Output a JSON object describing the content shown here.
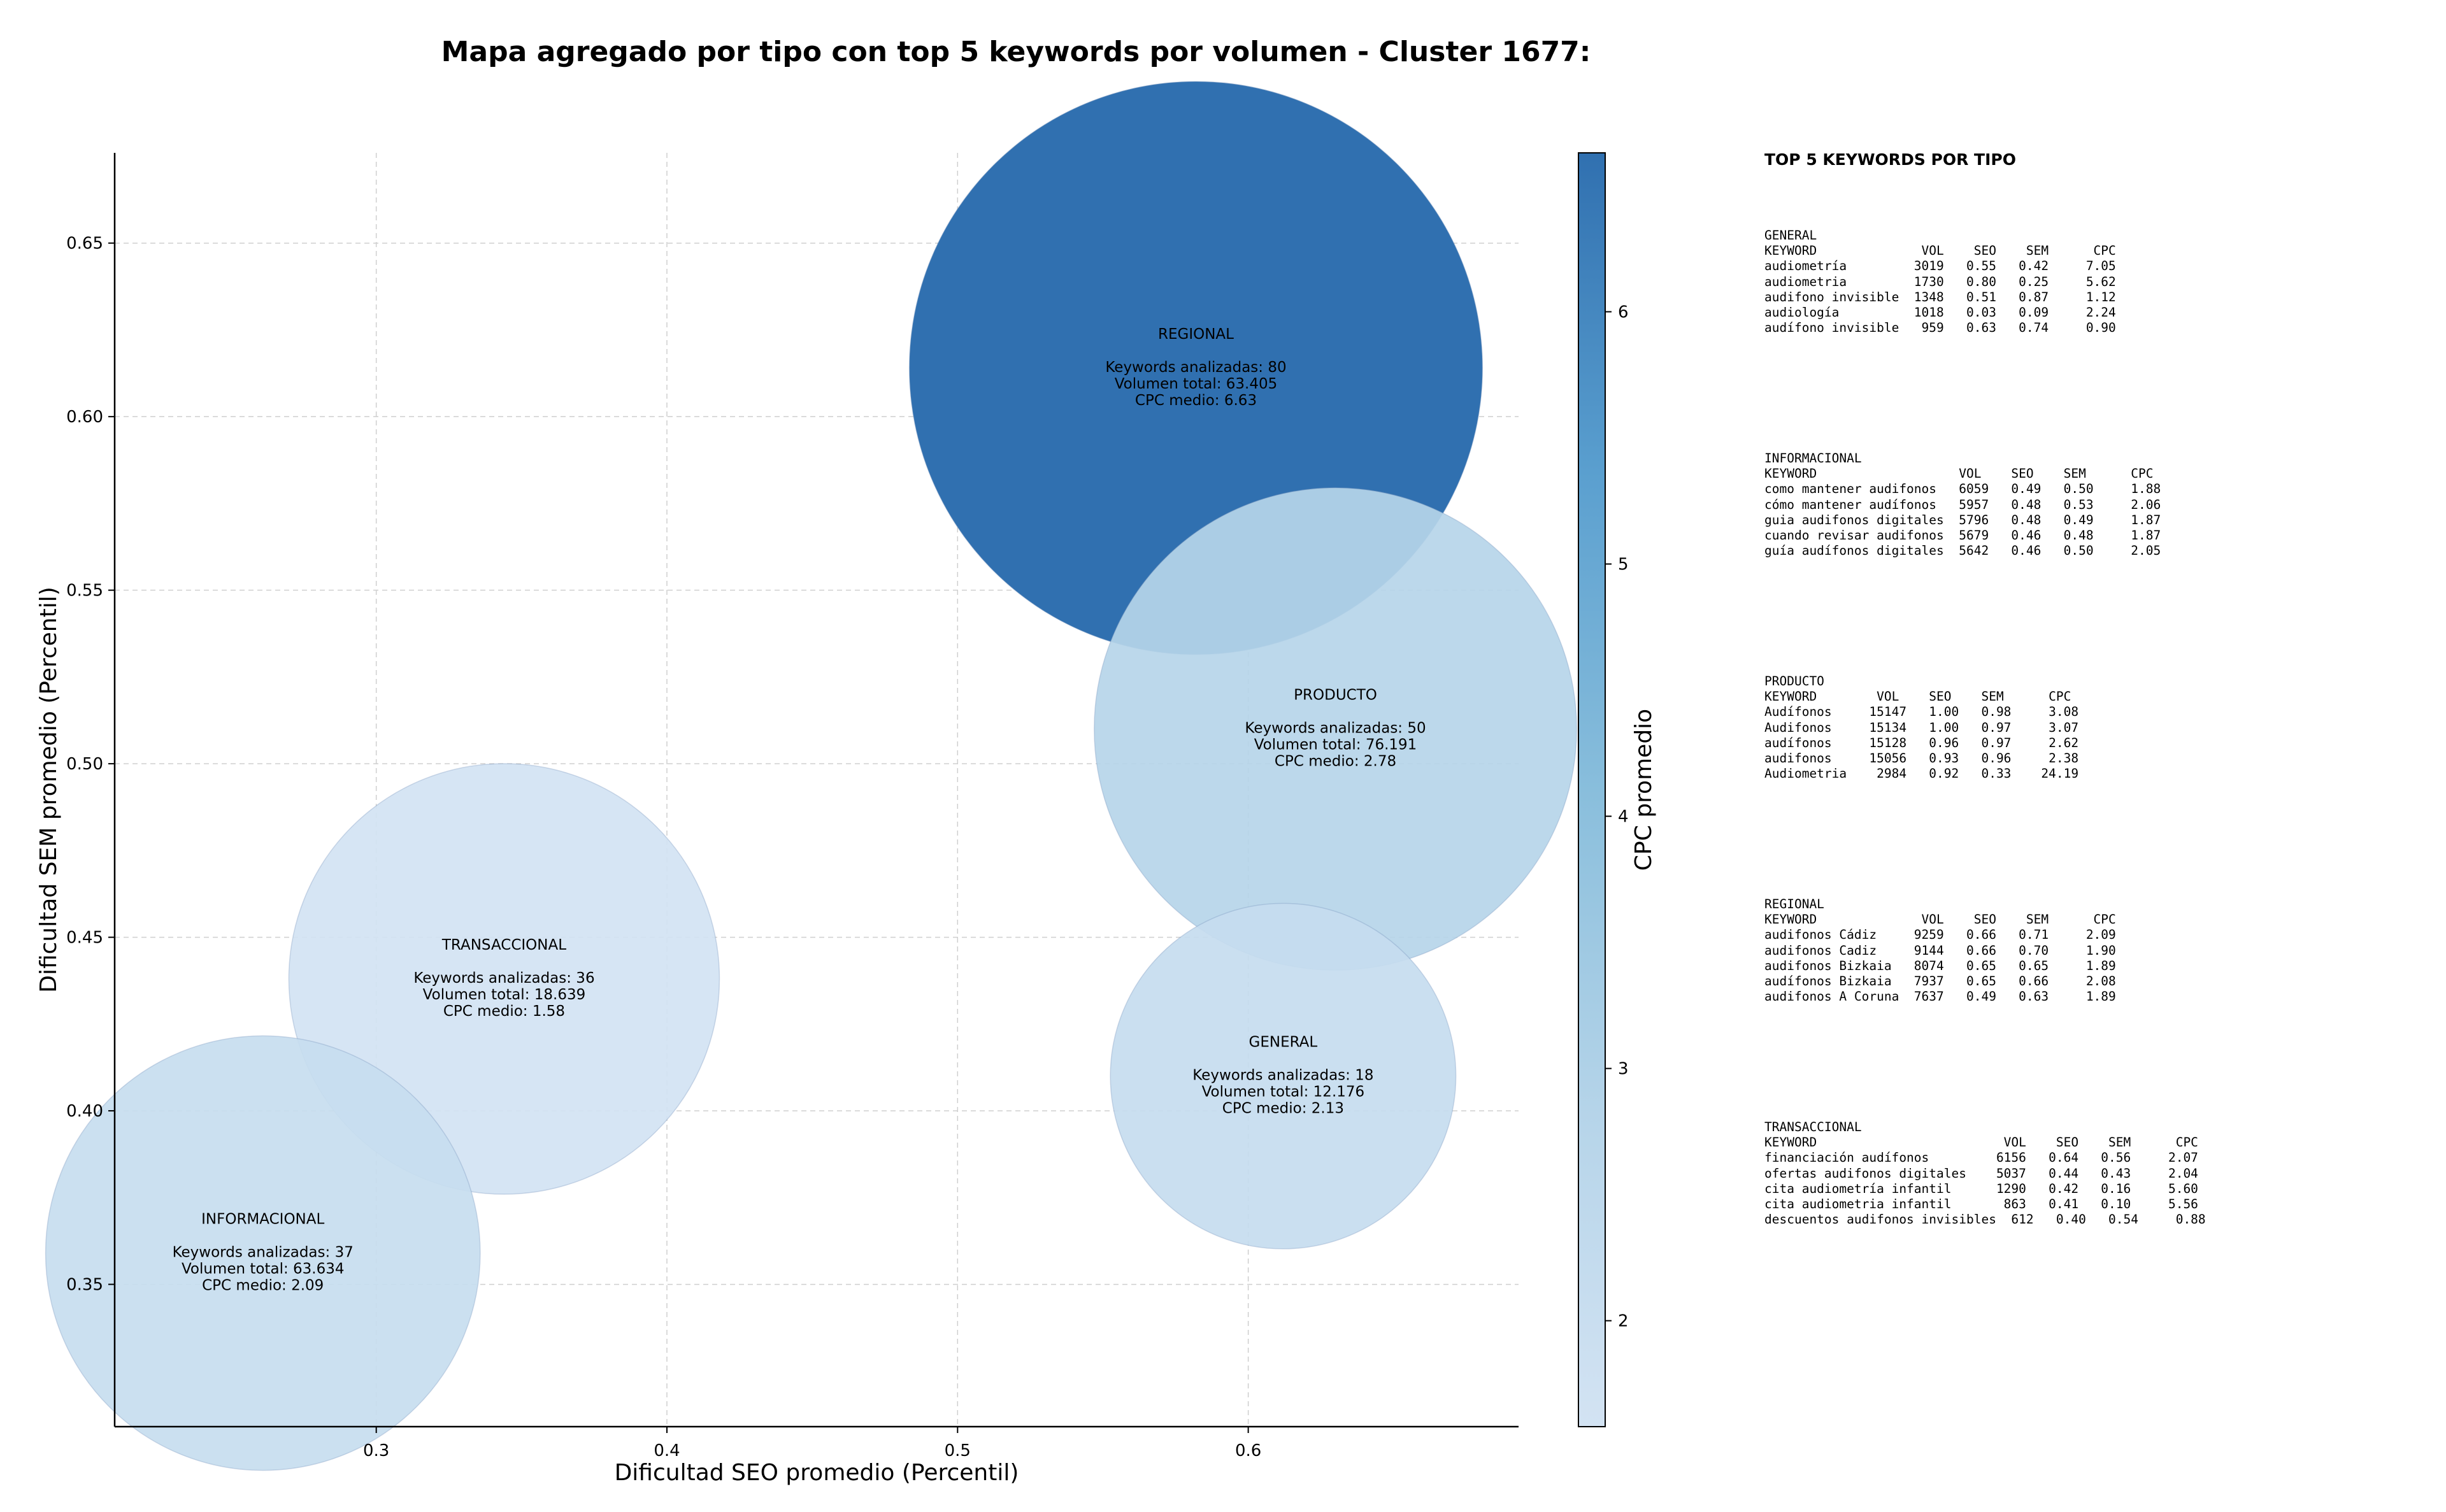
{
  "chart_data": {
    "type": "scatter",
    "title": "Mapa agregado por tipo con top 5 keywords por volumen - Cluster 1677:",
    "xlabel": "Dificultad SEO promedio (Percentil)",
    "ylabel": "Dificultad SEM promedio (Percentil)",
    "xlim": [
      0.21,
      0.693
    ],
    "ylim": [
      0.309,
      0.676
    ],
    "xticks": [
      "0.3",
      "0.4",
      "0.5",
      "0.6"
    ],
    "yticks": [
      "0.35",
      "0.40",
      "0.45",
      "0.50",
      "0.55",
      "0.60",
      "0.65"
    ],
    "grid": true,
    "colorbar": {
      "label": "CPC promedio",
      "range": [
        1.58,
        6.63
      ],
      "ticks": [
        "2",
        "3",
        "4",
        "5",
        "6"
      ]
    },
    "points": [
      {
        "name": "REGIONAL",
        "x": 0.582,
        "y": 0.614,
        "keywords_line": "Keywords analizadas: 80",
        "volume_line": "Volumen total: 63.405",
        "cpc_line": "CPC medio: 6.63",
        "keywords": 80,
        "volume": 63405,
        "cpc": 6.63
      },
      {
        "name": "PRODUCTO",
        "x": 0.63,
        "y": 0.51,
        "keywords_line": "Keywords analizadas: 50",
        "volume_line": "Volumen total: 76.191",
        "cpc_line": "CPC medio: 2.78",
        "keywords": 50,
        "volume": 76191,
        "cpc": 2.78
      },
      {
        "name": "TRANSACCIONAL",
        "x": 0.344,
        "y": 0.438,
        "keywords_line": "Keywords analizadas: 36",
        "volume_line": "Volumen total: 18.639",
        "cpc_line": "CPC medio: 1.58",
        "keywords": 36,
        "volume": 18639,
        "cpc": 1.58
      },
      {
        "name": "GENERAL",
        "x": 0.612,
        "y": 0.41,
        "keywords_line": "Keywords analizadas: 18",
        "volume_line": "Volumen total: 12.176",
        "cpc_line": "CPC medio: 2.13",
        "keywords": 18,
        "volume": 12176,
        "cpc": 2.13
      },
      {
        "name": "INFORMACIONAL",
        "x": 0.261,
        "y": 0.359,
        "keywords_line": "Keywords analizadas: 37",
        "volume_line": "Volumen total: 63.634",
        "cpc_line": "CPC medio: 2.09",
        "keywords": 37,
        "volume": 63634,
        "cpc": 2.09
      }
    ]
  },
  "side_panel": {
    "title": "TOP 5 KEYWORDS POR TIPO",
    "blocks": [
      {
        "label": "GENERAL",
        "header": "KEYWORD              VOL    SEO    SEM      CPC",
        "rows": [
          "audiometría         3019   0.55   0.42     7.05",
          "audiometria         1730   0.80   0.25     5.62",
          "audifono invisible  1348   0.51   0.87     1.12",
          "audiología          1018   0.03   0.09     2.24",
          "audífono invisible   959   0.63   0.74     0.90"
        ]
      },
      {
        "label": "INFORMACIONAL",
        "header": "KEYWORD                   VOL    SEO    SEM      CPC",
        "rows": [
          "como mantener audifonos   6059   0.49   0.50     1.88",
          "cómo mantener audífonos   5957   0.48   0.53     2.06",
          "guia audifonos digitales  5796   0.48   0.49     1.87",
          "cuando revisar audifonos  5679   0.46   0.48     1.87",
          "guía audífonos digitales  5642   0.46   0.50     2.05"
        ]
      },
      {
        "label": "PRODUCTO",
        "header": "KEYWORD        VOL    SEO    SEM      CPC",
        "rows": [
          "Audífonos     15147   1.00   0.98     3.08",
          "Audifonos     15134   1.00   0.97     3.07",
          "audífonos     15128   0.96   0.97     2.62",
          "audifonos     15056   0.93   0.96     2.38",
          "Audiometria    2984   0.92   0.33    24.19"
        ]
      },
      {
        "label": "REGIONAL",
        "header": "KEYWORD              VOL    SEO    SEM      CPC",
        "rows": [
          "audifonos Cádiz     9259   0.66   0.71     2.09",
          "audifonos Cadiz     9144   0.66   0.70     1.90",
          "audifonos Bizkaia   8074   0.65   0.65     1.89",
          "audífonos Bizkaia   7937   0.65   0.66     2.08",
          "audifonos A Coruna  7637   0.49   0.63     1.89"
        ]
      },
      {
        "label": "TRANSACCIONAL",
        "header": "KEYWORD                         VOL    SEO    SEM      CPC",
        "rows": [
          "financiación audífonos         6156   0.64   0.56     2.07",
          "ofertas audifonos digitales    5037   0.44   0.43     2.04",
          "cita audiometría infantil      1290   0.42   0.16     5.60",
          "cita audiometria infantil       863   0.41   0.10     5.56",
          "descuentos audifonos invisibles  612   0.40   0.54     0.88"
        ]
      }
    ]
  }
}
